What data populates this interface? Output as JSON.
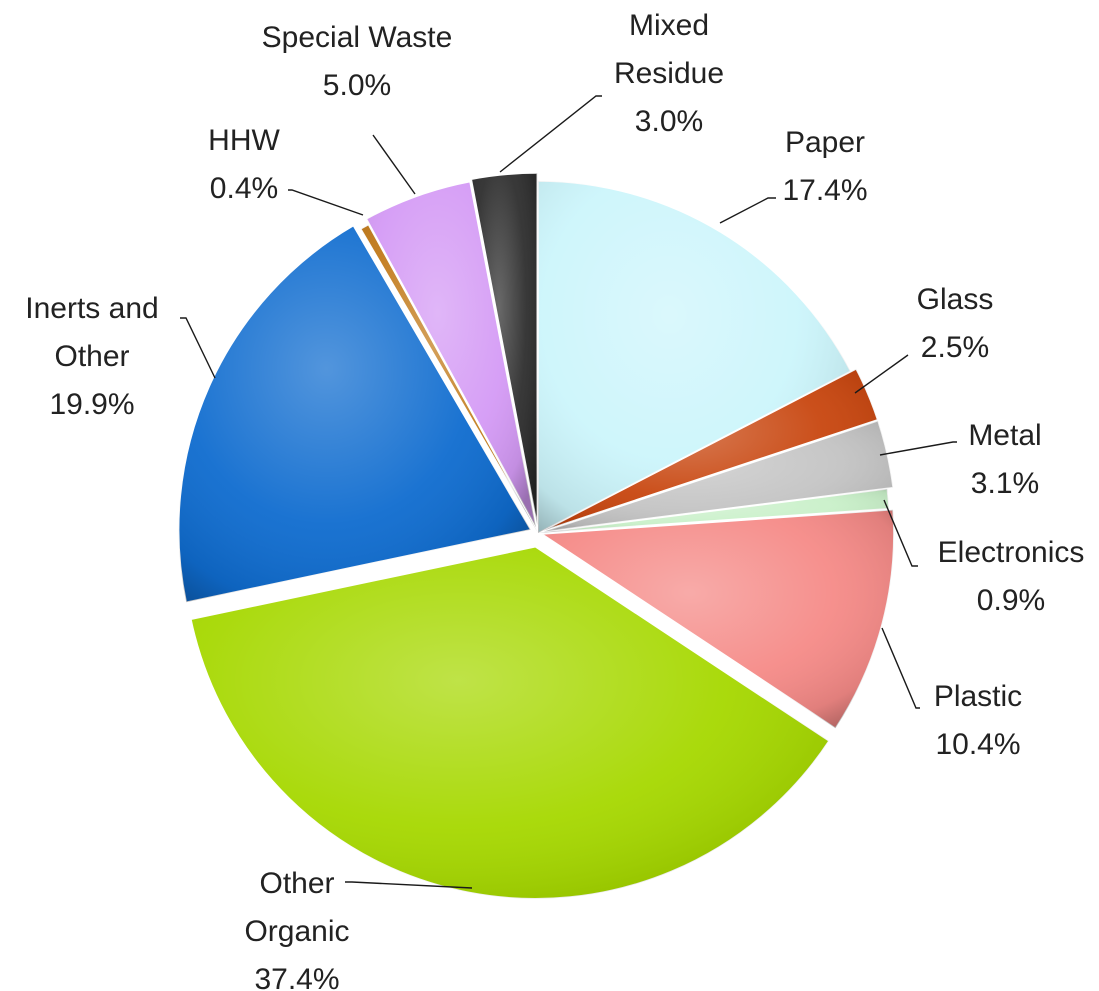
{
  "chart_data": {
    "type": "pie",
    "title": "",
    "legend": "none",
    "slices": [
      {
        "name": "Paper",
        "value": 17.4,
        "label": "17.4%",
        "color": "#ccf5fb"
      },
      {
        "name": "Glass",
        "value": 2.5,
        "label": "2.5%",
        "color": "#c8460f"
      },
      {
        "name": "Metal",
        "value": 3.1,
        "label": "3.1%",
        "color": "#c4c4c4"
      },
      {
        "name": "Electronics",
        "value": 0.9,
        "label": "0.9%",
        "color": "#c9f0c9"
      },
      {
        "name": "Plastic",
        "value": 10.4,
        "label": "10.4%",
        "color": "#f58a87"
      },
      {
        "name": "Other Organic",
        "value": 37.4,
        "label": "37.4%",
        "color": "#a6d800"
      },
      {
        "name": "Inerts and Other",
        "value": 19.9,
        "label": "19.9%",
        "color": "#0f6ccf"
      },
      {
        "name": "HHW",
        "value": 0.4,
        "label": "0.4%",
        "color": "#c27a1a"
      },
      {
        "name": "Special Waste",
        "value": 5.0,
        "label": "5.0%",
        "color": "#d49af5"
      },
      {
        "name": "Mixed Residue",
        "value": 3.0,
        "label": "3.0%",
        "color": "#2e2e2e"
      }
    ],
    "label_lines": [
      [
        "Paper",
        "17.4%"
      ],
      [
        "Glass",
        "2.5%"
      ],
      [
        "Metal",
        "3.1%"
      ],
      [
        "Electronics",
        "0.9%"
      ],
      [
        "Plastic",
        "10.4%"
      ],
      [
        "Other",
        "Organic",
        "37.4%"
      ],
      [
        "Inerts and",
        "Other",
        "19.9%"
      ],
      [
        "HHW",
        "0.4%"
      ],
      [
        "Special Waste",
        "5.0%"
      ],
      [
        "Mixed",
        "Residue",
        "3.0%"
      ]
    ]
  }
}
